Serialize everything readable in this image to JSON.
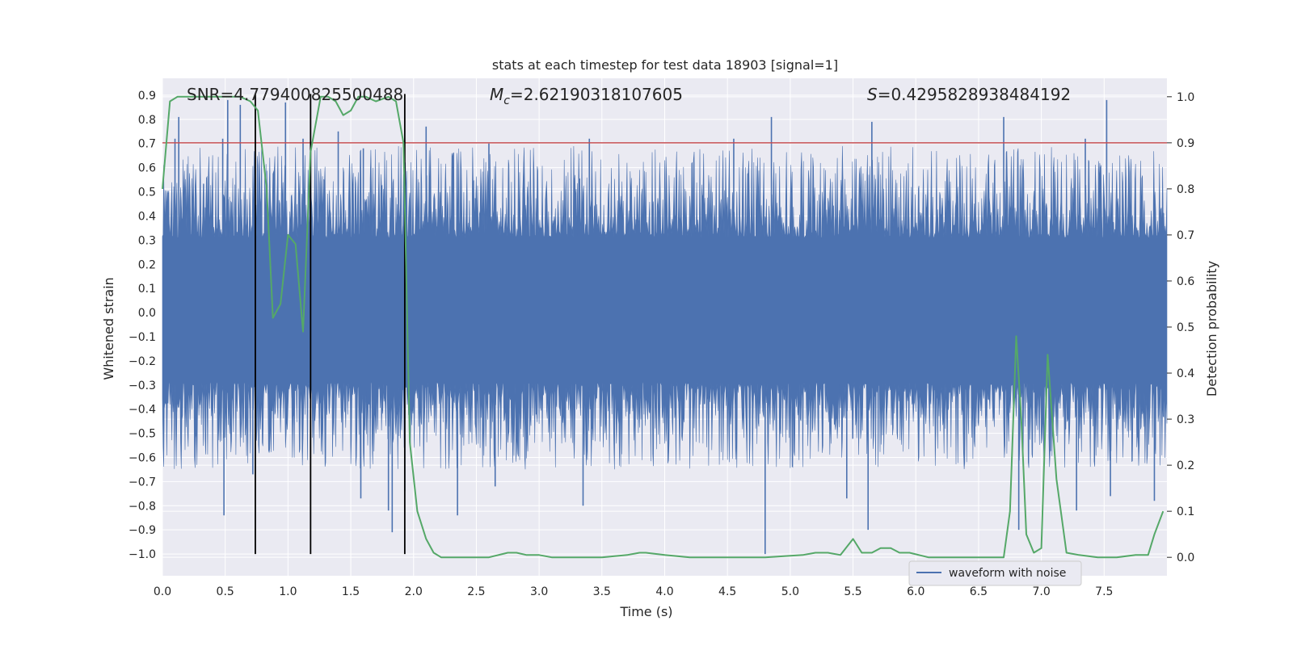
{
  "chart_data": {
    "type": "line",
    "title": "stats at each timestep for test data 18903 [signal=1]",
    "xlabel": "Time (s)",
    "ylabel": "Whitened strain",
    "y2label": "Detection probability",
    "xlim": [
      0,
      8
    ],
    "ylim": [
      -1.09,
      0.97
    ],
    "y2lim": [
      -0.04,
      1.04
    ],
    "xticks": [
      "0.0",
      "0.5",
      "1.0",
      "1.5",
      "2.0",
      "2.5",
      "3.0",
      "3.5",
      "4.0",
      "4.5",
      "5.0",
      "5.5",
      "6.0",
      "6.5",
      "7.0",
      "7.5"
    ],
    "yticks": [
      "0.9",
      "0.8",
      "0.7",
      "0.6",
      "0.5",
      "0.4",
      "0.3",
      "0.2",
      "0.1",
      "0.0",
      "−0.1",
      "−0.2",
      "−0.3",
      "−0.4",
      "−0.5",
      "−0.6",
      "−0.7",
      "−0.8",
      "−0.9",
      "−1.0"
    ],
    "y2ticks": [
      "1.0",
      "0.9",
      "0.8",
      "0.7",
      "0.6",
      "0.5",
      "0.4",
      "0.3",
      "0.2",
      "0.1",
      "0.0"
    ],
    "annotations": {
      "snr": "SNR=4.779400825500488",
      "mc_symbol": "M",
      "mc_sub": "c",
      "mc_value": "=2.62190318107605",
      "s_symbol": "S",
      "s_value": "=0.4295828938484192"
    },
    "threshold": {
      "value": 0.9,
      "axis": "right",
      "color": "#c44e52"
    },
    "vlines": [
      0.74,
      1.18,
      1.93
    ],
    "waveform": {
      "name": "waveform with noise",
      "color": "#4c72b0",
      "core_band": [
        -0.29,
        0.31
      ],
      "spikes": [
        {
          "x": 0.1,
          "y": 0.72
        },
        {
          "x": 0.13,
          "y": 0.81
        },
        {
          "x": 0.48,
          "y": 0.72
        },
        {
          "x": 0.52,
          "y": 0.88
        },
        {
          "x": 0.62,
          "y": 0.86
        },
        {
          "x": 0.98,
          "y": 0.87
        },
        {
          "x": 1.12,
          "y": 0.72
        },
        {
          "x": 1.4,
          "y": 0.75
        },
        {
          "x": 1.6,
          "y": 0.68
        },
        {
          "x": 2.1,
          "y": 0.77
        },
        {
          "x": 2.6,
          "y": 0.7
        },
        {
          "x": 3.4,
          "y": 0.72
        },
        {
          "x": 4.55,
          "y": 0.72
        },
        {
          "x": 4.85,
          "y": 0.81
        },
        {
          "x": 5.65,
          "y": 0.79
        },
        {
          "x": 6.7,
          "y": 0.81
        },
        {
          "x": 7.35,
          "y": 0.72
        },
        {
          "x": 7.52,
          "y": 0.88
        },
        {
          "x": 0.49,
          "y": -0.84
        },
        {
          "x": 0.72,
          "y": -0.67
        },
        {
          "x": 1.58,
          "y": -0.77
        },
        {
          "x": 1.8,
          "y": -0.82
        },
        {
          "x": 1.83,
          "y": -0.91
        },
        {
          "x": 1.93,
          "y": -0.74
        },
        {
          "x": 2.35,
          "y": -0.84
        },
        {
          "x": 2.65,
          "y": -0.72
        },
        {
          "x": 3.35,
          "y": -0.8
        },
        {
          "x": 4.8,
          "y": -1.0
        },
        {
          "x": 5.45,
          "y": -0.77
        },
        {
          "x": 5.62,
          "y": -0.9
        },
        {
          "x": 6.82,
          "y": -0.9
        },
        {
          "x": 7.28,
          "y": -0.82
        },
        {
          "x": 7.55,
          "y": -0.76
        },
        {
          "x": 7.9,
          "y": -0.78
        }
      ]
    },
    "probability": {
      "color": "#55a868",
      "x": [
        0.0,
        0.06,
        0.12,
        0.3,
        0.5,
        0.62,
        0.7,
        0.76,
        0.83,
        0.88,
        0.94,
        1.0,
        1.06,
        1.12,
        1.18,
        1.26,
        1.32,
        1.38,
        1.44,
        1.5,
        1.56,
        1.62,
        1.7,
        1.8,
        1.86,
        1.92,
        1.97,
        2.03,
        2.1,
        2.16,
        2.22,
        2.3,
        2.45,
        2.6,
        2.75,
        2.82,
        2.9,
        3.0,
        3.1,
        3.3,
        3.5,
        3.7,
        3.8,
        3.85,
        4.0,
        4.2,
        4.5,
        4.8,
        5.1,
        5.2,
        5.3,
        5.4,
        5.5,
        5.57,
        5.65,
        5.72,
        5.8,
        5.87,
        5.95,
        6.1,
        6.3,
        6.5,
        6.6,
        6.7,
        6.75,
        6.8,
        6.84,
        6.88,
        6.94,
        7.0,
        7.05,
        7.12,
        7.2,
        7.3,
        7.45,
        7.6,
        7.75,
        7.85,
        7.9,
        7.97
      ],
      "y": [
        0.8,
        0.99,
        1.0,
        1.0,
        1.0,
        1.0,
        0.99,
        0.97,
        0.8,
        0.52,
        0.55,
        0.7,
        0.68,
        0.49,
        0.88,
        1.0,
        1.0,
        0.99,
        0.96,
        0.97,
        1.0,
        1.0,
        0.99,
        1.0,
        0.99,
        0.9,
        0.25,
        0.1,
        0.04,
        0.01,
        0.0,
        0.0,
        0.0,
        0.0,
        0.01,
        0.01,
        0.005,
        0.005,
        0.0,
        0.0,
        0.0,
        0.005,
        0.01,
        0.01,
        0.005,
        0.0,
        0.0,
        0.0,
        0.005,
        0.01,
        0.01,
        0.005,
        0.04,
        0.01,
        0.01,
        0.02,
        0.02,
        0.01,
        0.01,
        0.0,
        0.0,
        0.0,
        0.0,
        0.0,
        0.1,
        0.48,
        0.3,
        0.05,
        0.01,
        0.02,
        0.44,
        0.17,
        0.01,
        0.005,
        0.0,
        0.0,
        0.005,
        0.005,
        0.05,
        0.1
      ]
    },
    "legend": {
      "entries": [
        "waveform with noise"
      ],
      "placement": "lower-right"
    },
    "grid": true
  },
  "colors": {
    "plot_background": "#eaeaf2",
    "grid": "#ffffff",
    "waveform": "#4c72b0",
    "probability": "#55a868",
    "threshold": "#c44e52",
    "vlines": "#000000"
  }
}
